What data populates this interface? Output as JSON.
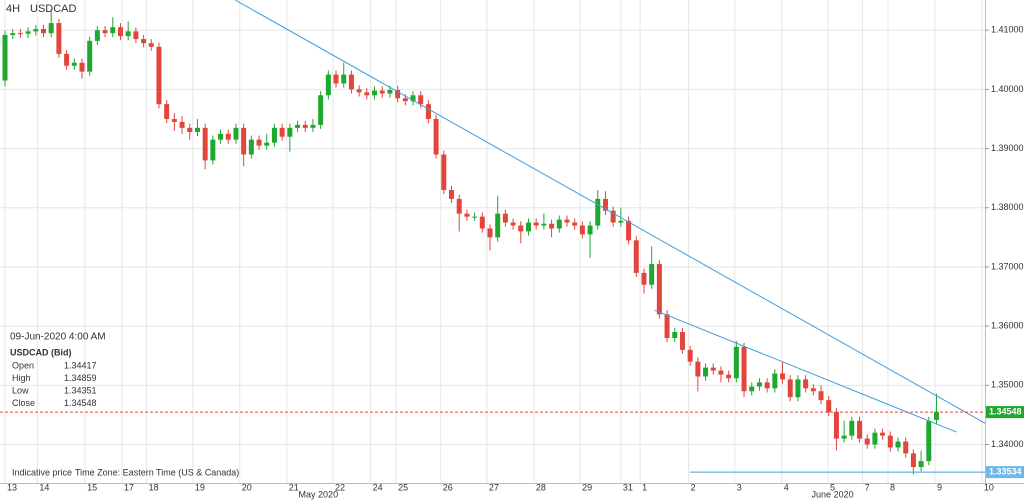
{
  "chart_data": {
    "type": "candlestick",
    "timeframe": "4H",
    "title": "USDCAD",
    "up_color": "#1fa82e",
    "down_color": "#e2453c",
    "line_color": "#3c9ee0",
    "xlim": [
      -0.65,
      127.3
    ],
    "ylim": [
      1.3335,
      1.4151
    ],
    "yticks": [
      {
        "value": 1.34,
        "label": "1.34000"
      },
      {
        "value": 1.35,
        "label": "1.35000"
      },
      {
        "value": 1.36,
        "label": "1.36000"
      },
      {
        "value": 1.37,
        "label": "1.37000"
      },
      {
        "value": 1.38,
        "label": "1.38000"
      },
      {
        "value": 1.39,
        "label": "1.39000"
      },
      {
        "value": 1.4,
        "label": "1.40000"
      },
      {
        "value": 1.41,
        "label": "1.41000"
      }
    ],
    "xticks": [
      {
        "value": 0,
        "label": "13"
      },
      {
        "value": 4.2,
        "label": "14"
      },
      {
        "value": 10.4,
        "label": "15"
      },
      {
        "value": 15.2,
        "label": "17"
      },
      {
        "value": 18.4,
        "label": "18"
      },
      {
        "value": 24.4,
        "label": "19"
      },
      {
        "value": 30.5,
        "label": "20"
      },
      {
        "value": 36.6,
        "label": "21"
      },
      {
        "value": 42.6,
        "label": "22"
      },
      {
        "value": 47.5,
        "label": "24"
      },
      {
        "value": 50.8,
        "label": "25"
      },
      {
        "value": 56.6,
        "label": "26"
      },
      {
        "value": 62.6,
        "label": "27"
      },
      {
        "value": 68.7,
        "label": "28"
      },
      {
        "value": 74.7,
        "label": "29"
      },
      {
        "value": 80,
        "label": "31"
      },
      {
        "value": 82.5,
        "label": "1"
      },
      {
        "value": 88.8,
        "label": "2"
      },
      {
        "value": 94.8,
        "label": "3"
      },
      {
        "value": 100.9,
        "label": "4"
      },
      {
        "value": 106.9,
        "label": "5"
      },
      {
        "value": 111.4,
        "label": "7"
      },
      {
        "value": 114.7,
        "label": "8"
      },
      {
        "value": 120.8,
        "label": "9"
      },
      {
        "value": 126.9,
        "label": "10"
      }
    ],
    "month_labels": [
      {
        "value": 40.7,
        "label": "May 2020"
      },
      {
        "value": 107.5,
        "label": "June 2020"
      }
    ],
    "open": [
      1.4015,
      1.4092,
      1.4095,
      1.4094,
      1.4098,
      1.4102,
      1.4095,
      1.4112,
      1.406,
      1.404,
      1.4045,
      1.403,
      1.4082,
      1.41,
      1.4095,
      1.4105,
      1.409,
      1.4098,
      1.4085,
      1.4078,
      1.4072,
      1.3975,
      1.395,
      1.3945,
      1.3935,
      1.3928,
      1.3935,
      1.388,
      1.3915,
      1.3925,
      1.3915,
      1.3935,
      1.389,
      1.3915,
      1.3905,
      1.391,
      1.3935,
      1.392,
      1.3935,
      1.394,
      1.3935,
      1.394,
      1.399,
      1.4025,
      1.401,
      1.4025,
      1.4,
      1.3995,
      1.399,
      1.3998,
      1.3993,
      1.3999,
      1.3985,
      1.398,
      1.399,
      1.3975,
      1.395,
      1.389,
      1.383,
      1.3815,
      1.379,
      1.3785,
      1.3785,
      1.3765,
      1.375,
      1.379,
      1.3775,
      1.377,
      1.376,
      1.3775,
      1.377,
      1.3773,
      1.3765,
      1.378,
      1.3775,
      1.377,
      1.3755,
      1.377,
      1.3815,
      1.3795,
      1.3775,
      1.3778,
      1.3745,
      1.369,
      1.367,
      1.3705,
      1.362,
      1.358,
      1.359,
      1.356,
      1.354,
      1.3515,
      1.353,
      1.3525,
      1.3518,
      1.3512,
      1.3565,
      1.349,
      1.3498,
      1.3505,
      1.3495,
      1.352,
      1.351,
      1.348,
      1.351,
      1.3495,
      1.349,
      1.3475,
      1.3455,
      1.341,
      1.3415,
      1.344,
      1.341,
      1.34,
      1.342,
      1.3415,
      1.3395,
      1.3405,
      1.3385,
      1.3362,
      1.3372,
      1.34417
    ],
    "high": [
      1.4099,
      1.4102,
      1.4102,
      1.4105,
      1.4109,
      1.4109,
      1.4135,
      1.4119,
      1.4067,
      1.4052,
      1.4052,
      1.4089,
      1.4107,
      1.4107,
      1.4122,
      1.4112,
      1.4115,
      1.4105,
      1.4092,
      1.4085,
      1.4079,
      1.3982,
      1.396,
      1.3955,
      1.3942,
      1.395,
      1.3942,
      1.3922,
      1.3932,
      1.3932,
      1.3942,
      1.3942,
      1.3922,
      1.3922,
      1.3925,
      1.3942,
      1.3942,
      1.3942,
      1.3947,
      1.3947,
      1.395,
      1.3997,
      1.4032,
      1.4032,
      1.4045,
      1.4032,
      1.4007,
      1.4002,
      1.4005,
      1.4005,
      1.4006,
      1.4006,
      1.3992,
      1.3997,
      1.3997,
      1.3982,
      1.3957,
      1.3897,
      1.3837,
      1.3822,
      1.3797,
      1.3792,
      1.3792,
      1.3772,
      1.382,
      1.3797,
      1.3782,
      1.3777,
      1.3782,
      1.3782,
      1.379,
      1.378,
      1.3787,
      1.3787,
      1.3782,
      1.3777,
      1.3777,
      1.383,
      1.3828,
      1.3802,
      1.38,
      1.3785,
      1.3752,
      1.3697,
      1.3735,
      1.3712,
      1.3627,
      1.3597,
      1.3597,
      1.3567,
      1.3547,
      1.3537,
      1.3537,
      1.3532,
      1.3525,
      1.3575,
      1.3572,
      1.3505,
      1.3512,
      1.3512,
      1.3527,
      1.354,
      1.3517,
      1.3517,
      1.3517,
      1.3502,
      1.35,
      1.3482,
      1.3462,
      1.344,
      1.3447,
      1.3447,
      1.3417,
      1.3427,
      1.3427,
      1.3422,
      1.3412,
      1.3412,
      1.3392,
      1.339,
      1.3447,
      1.34859
    ],
    "low": [
      1.4005,
      1.4085,
      1.4087,
      1.4087,
      1.4091,
      1.4088,
      1.4088,
      1.4053,
      1.4033,
      1.4033,
      1.4018,
      1.4023,
      1.4075,
      1.4088,
      1.4088,
      1.4083,
      1.4083,
      1.4078,
      1.4071,
      1.4065,
      1.3968,
      1.3943,
      1.393,
      1.3925,
      1.3915,
      1.3921,
      1.3865,
      1.3873,
      1.3908,
      1.3908,
      1.3908,
      1.387,
      1.3883,
      1.3898,
      1.3898,
      1.3903,
      1.3913,
      1.3895,
      1.3928,
      1.3928,
      1.3928,
      1.3933,
      1.3983,
      1.4003,
      1.4003,
      1.3993,
      1.3988,
      1.3983,
      1.3983,
      1.3986,
      1.3986,
      1.3978,
      1.3973,
      1.3973,
      1.3968,
      1.3943,
      1.3883,
      1.3823,
      1.3808,
      1.376,
      1.3778,
      1.3778,
      1.3758,
      1.3728,
      1.3743,
      1.3768,
      1.3763,
      1.374,
      1.3753,
      1.3763,
      1.3763,
      1.375,
      1.3758,
      1.3768,
      1.3763,
      1.3748,
      1.3715,
      1.3763,
      1.3788,
      1.3768,
      1.3768,
      1.3738,
      1.3683,
      1.3655,
      1.3663,
      1.3613,
      1.3573,
      1.3573,
      1.3553,
      1.3533,
      1.349,
      1.3508,
      1.3518,
      1.3505,
      1.3505,
      1.3505,
      1.348,
      1.3483,
      1.3491,
      1.3488,
      1.3488,
      1.3503,
      1.3473,
      1.3473,
      1.3488,
      1.3483,
      1.3468,
      1.3448,
      1.339,
      1.3403,
      1.3408,
      1.3403,
      1.3393,
      1.3393,
      1.3408,
      1.3388,
      1.3388,
      1.3378,
      1.335,
      1.3355,
      1.3365,
      1.34351
    ],
    "close": [
      1.4092,
      1.4095,
      1.4094,
      1.4098,
      1.4102,
      1.4095,
      1.4112,
      1.406,
      1.404,
      1.4045,
      1.403,
      1.4082,
      1.41,
      1.4095,
      1.4105,
      1.409,
      1.4098,
      1.4085,
      1.4078,
      1.4072,
      1.3975,
      1.395,
      1.3945,
      1.3935,
      1.3928,
      1.3935,
      1.388,
      1.3915,
      1.3925,
      1.3915,
      1.3935,
      1.389,
      1.3915,
      1.3905,
      1.391,
      1.3935,
      1.392,
      1.3935,
      1.394,
      1.3935,
      1.394,
      1.399,
      1.4025,
      1.401,
      1.4025,
      1.4,
      1.3995,
      1.399,
      1.3998,
      1.3993,
      1.3999,
      1.3985,
      1.398,
      1.399,
      1.3975,
      1.395,
      1.389,
      1.383,
      1.3815,
      1.379,
      1.3785,
      1.3785,
      1.3765,
      1.375,
      1.379,
      1.3775,
      1.377,
      1.376,
      1.3775,
      1.377,
      1.3773,
      1.3765,
      1.378,
      1.3775,
      1.377,
      1.3755,
      1.377,
      1.3815,
      1.3795,
      1.3775,
      1.3778,
      1.3745,
      1.369,
      1.367,
      1.3705,
      1.362,
      1.358,
      1.359,
      1.356,
      1.354,
      1.3515,
      1.353,
      1.3525,
      1.3518,
      1.3512,
      1.3565,
      1.349,
      1.3498,
      1.3505,
      1.3495,
      1.352,
      1.351,
      1.348,
      1.351,
      1.3495,
      1.349,
      1.3475,
      1.3455,
      1.341,
      1.3415,
      1.344,
      1.341,
      1.34,
      1.342,
      1.3415,
      1.3395,
      1.3405,
      1.3385,
      1.3362,
      1.3372,
      1.344,
      1.34548
    ],
    "trendlines": [
      {
        "x": [
          29.9,
          127.3
        ],
        "y": [
          1.4151,
          1.3436
        ]
      },
      {
        "x": [
          84.4,
          123.6
        ],
        "y": [
          1.3627,
          1.3421
        ]
      },
      {
        "x": [
          89,
          127.3
        ],
        "y": [
          1.33534,
          1.33534
        ]
      }
    ],
    "info": {
      "datetime": "09-Jun-2020 4:00 AM",
      "symbol": "USDCAD (Bid)",
      "labels": [
        "Open",
        "High",
        "Low",
        "Close"
      ]
    },
    "footer": {
      "note": "Indicative price",
      "timezone": "Time Zone: Eastern Time (US & Canada)"
    }
  }
}
